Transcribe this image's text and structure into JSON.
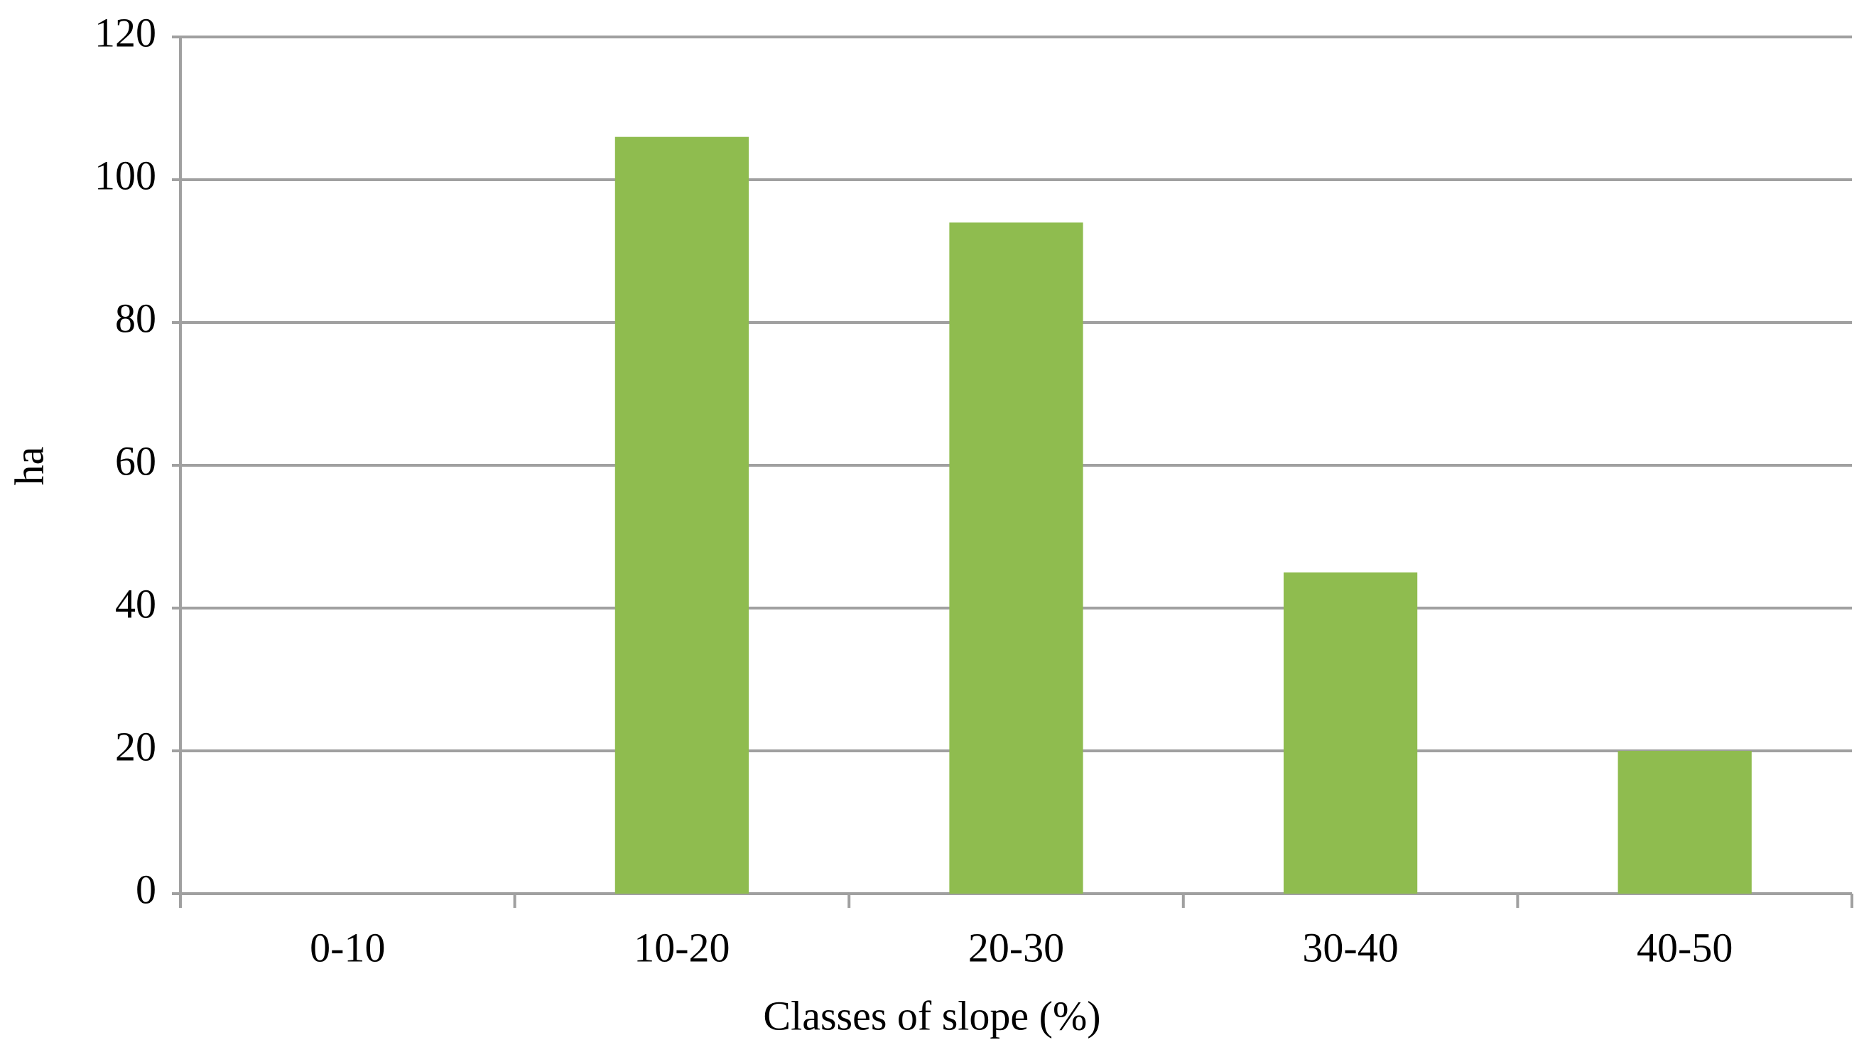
{
  "chart_data": {
    "type": "bar",
    "x_label": "Classes of slope (%)",
    "y_label": "ha",
    "categories": [
      "0-10",
      "10-20",
      "20-30",
      "30-40",
      "40-50"
    ],
    "values": [
      0,
      106,
      94,
      45,
      20
    ],
    "color": "#8fbc4f",
    "ylim": [
      0,
      120
    ],
    "yticks": [
      0,
      20,
      40,
      60,
      80,
      100,
      120
    ],
    "grid": true
  }
}
